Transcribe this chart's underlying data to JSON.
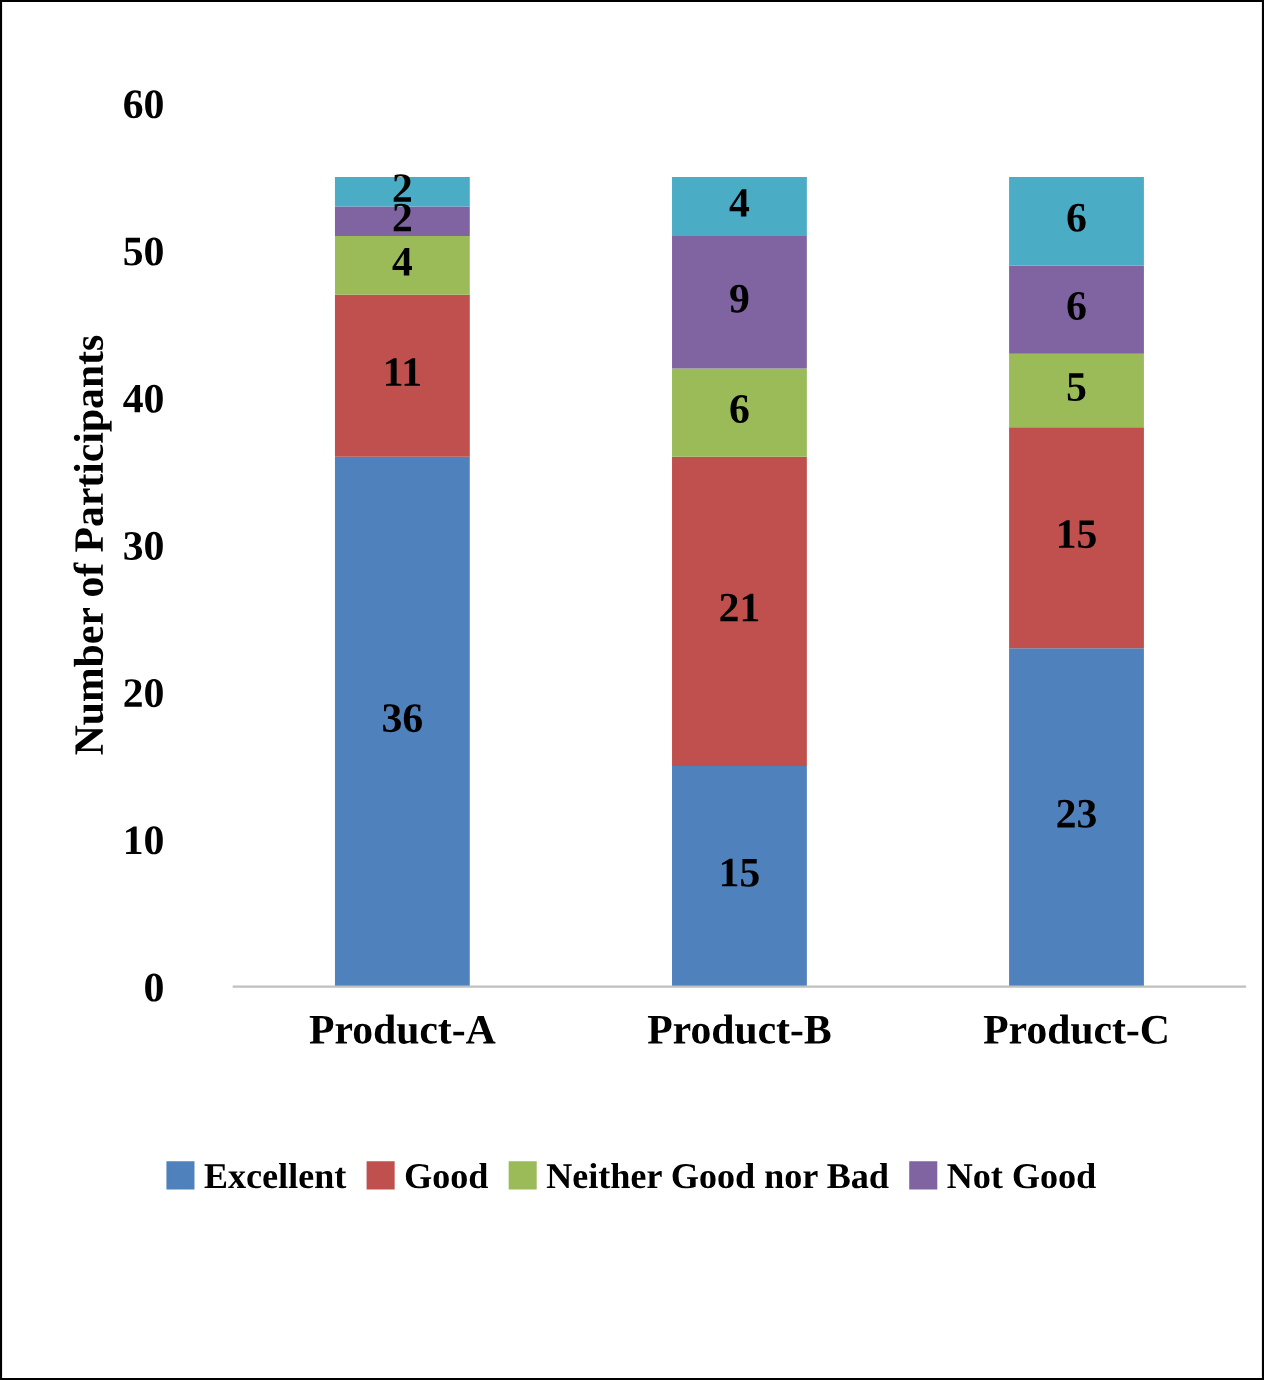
{
  "chart_data": {
    "type": "bar",
    "stacked": true,
    "ylabel": "Number of Participants",
    "categories": [
      "Product-A",
      "Product-B",
      "Product-C"
    ],
    "series": [
      {
        "name": "Excellent",
        "color": "#4f81bd",
        "values": [
          36,
          15,
          23
        ]
      },
      {
        "name": "Good",
        "color": "#c0504d",
        "values": [
          11,
          21,
          15
        ]
      },
      {
        "name": "Neither Good nor Bad",
        "color": "#9bbb59",
        "values": [
          4,
          6,
          5
        ]
      },
      {
        "name": "Not Good",
        "color": "#8064a2",
        "values": [
          2,
          9,
          6
        ]
      },
      {
        "color": "#4bacc6",
        "values": [
          2,
          4,
          6
        ]
      }
    ],
    "ylim": [
      0,
      60
    ],
    "yticks": [
      0,
      10,
      20,
      30,
      40,
      50,
      60
    ],
    "grid": false,
    "legend": "bottom",
    "data_labels": true
  }
}
